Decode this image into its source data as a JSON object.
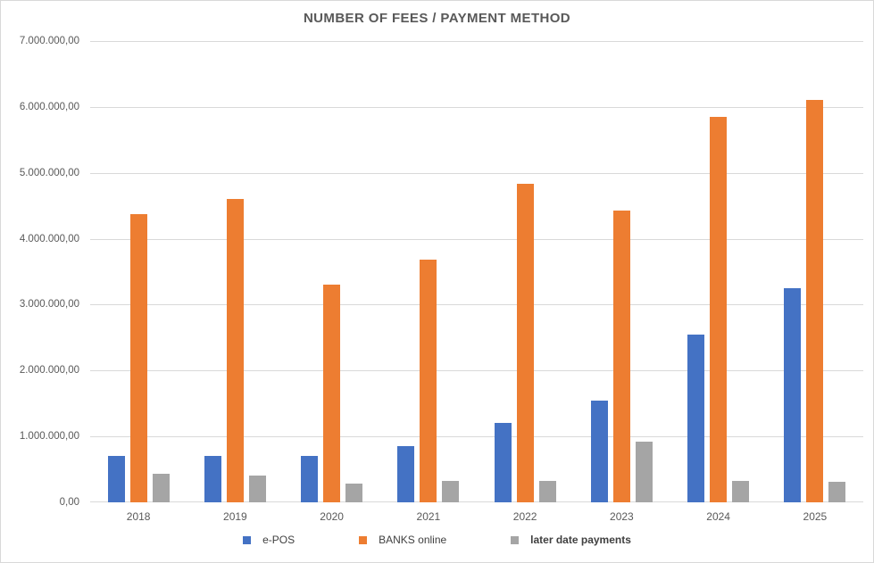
{
  "chart_data": {
    "type": "bar",
    "title": "NUMBER OF FEES / PAYMENT METHOD",
    "categories": [
      "2018",
      "2019",
      "2020",
      "2021",
      "2022",
      "2023",
      "2024",
      "2025"
    ],
    "series": [
      {
        "name": "e-POS",
        "color": "#4472C4",
        "legend_bold": false,
        "values": [
          700000,
          710000,
          700000,
          850000,
          1200000,
          1550000,
          2550000,
          3250000
        ]
      },
      {
        "name": "BANKS online",
        "color": "#ED7D31",
        "legend_bold": false,
        "values": [
          4380000,
          4600000,
          3300000,
          3680000,
          4830000,
          4430000,
          5850000,
          6100000
        ]
      },
      {
        "name": "later date payments",
        "color": "#A5A5A5",
        "legend_bold": true,
        "values": [
          430000,
          400000,
          280000,
          330000,
          320000,
          920000,
          320000,
          310000
        ]
      }
    ],
    "ylim": [
      0,
      7000000
    ],
    "y_tick_interval": 1000000,
    "y_tick_labels": [
      "0,00",
      "1.000.000,00",
      "2.000.000,00",
      "3.000.000,00",
      "4.000.000,00",
      "5.000.000,00",
      "6.000.000,00",
      "7.000.000,00"
    ],
    "grid": true,
    "legend_position": "bottom",
    "colors": {
      "grid": "#D9D9D9",
      "axis_text": "#595959",
      "title_text": "#595959",
      "background": "#FFFFFF",
      "frame_border": "#D9D9D9"
    }
  }
}
